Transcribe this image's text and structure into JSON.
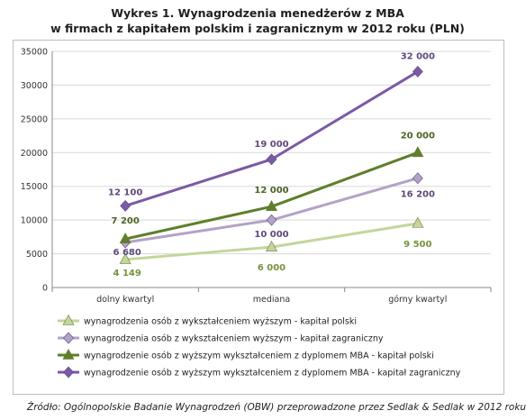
{
  "title_line1": "Wykres 1. Wynagrodzenia menedżerów z MBA",
  "title_line2": "w firmach  z kapitałem polskim i zagranicznym w 2012 roku (PLN)",
  "source": "Źródło: Ogólnopolskie Badanie Wynagrodzeń (OBW) przeprowadzone przez Sedlak & Sedlak w 2012 roku",
  "chart_data": {
    "type": "line",
    "categories": [
      "dolny kwartyl",
      "mediana",
      "górny kwartyl"
    ],
    "ylim": [
      0,
      35000
    ],
    "yticks": [
      "0",
      "5000",
      "10000",
      "15000",
      "20000",
      "25000",
      "30000",
      "35000"
    ],
    "grid": true,
    "legend_position": "bottom",
    "series": [
      {
        "name": "wynagrodzenia osób z wykształceniem wyższym - kapitał polski",
        "values": [
          4149,
          6000,
          9500
        ],
        "labels": [
          "4 149",
          "6 000",
          "9 500"
        ],
        "color": "#c3d69b",
        "marker": "triangle",
        "label_color": "#77933c"
      },
      {
        "name": "wynagrodzenia osób z wykształceniem wyższym - kapitał zagraniczny",
        "values": [
          6680,
          10000,
          16200
        ],
        "labels": [
          "6 680",
          "10 000",
          "16 200"
        ],
        "color": "#b3a2c7",
        "marker": "diamond",
        "label_color": "#5f497a"
      },
      {
        "name": "wynagrodzenie osób z wyższym wykształceniem z dyplomem MBA - kapitał polski",
        "values": [
          7200,
          12000,
          20000
        ],
        "labels": [
          "7 200",
          "12 000",
          "20 000"
        ],
        "color": "#5f7f2a",
        "marker": "triangle",
        "label_color": "#4f6228"
      },
      {
        "name": "wynagrodzenie osób z wyższym wykształceniem z dyplomem MBA - kapitał zagraniczny",
        "values": [
          12100,
          19000,
          32000
        ],
        "labels": [
          "12 100",
          "19 000",
          "32 000"
        ],
        "color": "#7b5aa6",
        "marker": "diamond",
        "label_color": "#5f497a"
      }
    ]
  }
}
